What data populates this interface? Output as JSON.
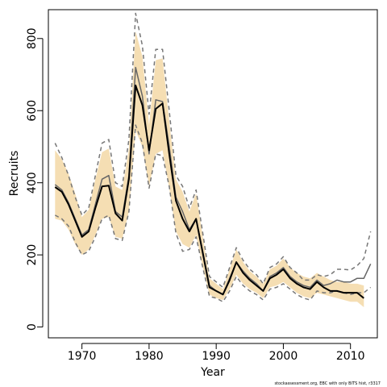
{
  "chart_data": {
    "type": "line",
    "xlabel": "Year",
    "ylabel": "Recruits",
    "xlim": [
      1965,
      2014
    ],
    "ylim": [
      -30,
      880
    ],
    "x_ticks": [
      1970,
      1980,
      1990,
      2000,
      2010
    ],
    "y_ticks": [
      0,
      200,
      400,
      600,
      800
    ],
    "grid": false,
    "colors": {
      "band": "#F5DEB3",
      "estimate": "#000000",
      "secondary": "#666666",
      "dashed": "#777777"
    },
    "x": [
      1966,
      1967,
      1968,
      1969,
      1970,
      1971,
      1972,
      1973,
      1974,
      1975,
      1976,
      1977,
      1978,
      1979,
      1980,
      1981,
      1982,
      1983,
      1984,
      1985,
      1986,
      1987,
      1988,
      1989,
      1990,
      1991,
      1992,
      1993,
      1994,
      1995,
      1996,
      1997,
      1998,
      1999,
      2000,
      2001,
      2002,
      2003,
      2004,
      2005,
      2006,
      2007,
      2008,
      2009,
      2010,
      2011,
      2012,
      2013
    ],
    "series": [
      {
        "values": [
          388,
          375,
          340,
          295,
          250,
          265,
          330,
          390,
          392,
          315,
          295,
          410,
          670,
          615,
          490,
          605,
          620,
          480,
          350,
          300,
          265,
          300,
          205,
          110,
          100,
          90,
          130,
          180,
          150,
          130,
          115,
          100,
          135,
          145,
          160,
          135,
          120,
          110,
          105,
          125,
          110,
          100,
          100,
          95,
          95,
          95,
          80,
          null
        ]
      },
      {
        "values": [
          395,
          380,
          345,
          300,
          255,
          270,
          340,
          410,
          420,
          320,
          305,
          420,
          720,
          640,
          480,
          630,
          625,
          500,
          360,
          320,
          270,
          300,
          210,
          115,
          100,
          90,
          135,
          180,
          155,
          135,
          120,
          100,
          140,
          150,
          165,
          140,
          125,
          115,
          110,
          130,
          115,
          120,
          130,
          125,
          125,
          135,
          135,
          175
        ]
      },
      {
        "values": [
          510,
          470,
          420,
          360,
          310,
          330,
          420,
          510,
          520,
          400,
          390,
          520,
          870,
          780,
          590,
          770,
          770,
          600,
          420,
          390,
          330,
          380,
          260,
          140,
          125,
          110,
          165,
          220,
          185,
          160,
          145,
          120,
          165,
          175,
          195,
          165,
          150,
          130,
          130,
          145,
          140,
          145,
          160,
          160,
          158,
          170,
          190,
          265
        ]
      },
      {
        "values": [
          310,
          300,
          280,
          235,
          200,
          210,
          250,
          300,
          310,
          245,
          240,
          320,
          560,
          510,
          385,
          480,
          475,
          390,
          260,
          210,
          215,
          250,
          165,
          85,
          80,
          70,
          100,
          140,
          115,
          100,
          90,
          75,
          105,
          110,
          120,
          105,
          90,
          80,
          75,
          100,
          95,
          95,
          100,
          95,
          90,
          95,
          95,
          110
        ]
      }
    ],
    "band_upper": [
      490,
      465,
      425,
      370,
      305,
      325,
      410,
      485,
      495,
      390,
      380,
      495,
      820,
      750,
      560,
      740,
      745,
      570,
      410,
      375,
      320,
      370,
      250,
      135,
      120,
      105,
      160,
      215,
      180,
      155,
      140,
      120,
      160,
      170,
      190,
      165,
      150,
      140,
      135,
      150,
      140,
      130,
      125,
      125,
      120,
      120,
      115,
      null
    ],
    "band_lower": [
      300,
      295,
      270,
      230,
      200,
      215,
      255,
      300,
      305,
      250,
      245,
      320,
      545,
      500,
      390,
      480,
      490,
      385,
      265,
      230,
      220,
      255,
      165,
      90,
      80,
      75,
      105,
      145,
      120,
      105,
      95,
      80,
      110,
      115,
      125,
      110,
      95,
      85,
      80,
      95,
      90,
      85,
      80,
      75,
      70,
      70,
      55,
      null
    ]
  },
  "footnote": "stockassessment.org, EBC with only BITS hist, r3317"
}
